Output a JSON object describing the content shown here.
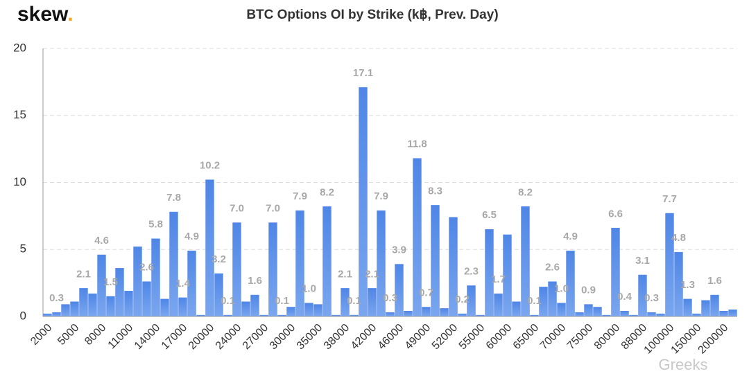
{
  "logo": "skew",
  "logo_dot": ".",
  "watermark": "Greeks",
  "chart_data": {
    "type": "bar",
    "title": "BTC Options OI by Strike (k฿, Prev. Day)",
    "categories": [
      "2000",
      null,
      null,
      "5000",
      null,
      null,
      "8000",
      null,
      null,
      "11000",
      null,
      null,
      "14000",
      null,
      null,
      "17000",
      null,
      null,
      "20000",
      null,
      null,
      "24000",
      null,
      null,
      "27000",
      null,
      null,
      "30000",
      null,
      null,
      "35000",
      null,
      null,
      "38000",
      null,
      null,
      "42000",
      null,
      null,
      "46000",
      null,
      null,
      "49000",
      null,
      null,
      "52000",
      null,
      null,
      "55000",
      null,
      null,
      "60000",
      null,
      null,
      "65000",
      null,
      null,
      "70000",
      null,
      null,
      "75000",
      null,
      null,
      "80000",
      null,
      null,
      "88000",
      null,
      null,
      "100000",
      null,
      null,
      "150000",
      null,
      null,
      "200000",
      null
    ],
    "values": [
      0.2,
      0.3,
      0.9,
      1.1,
      2.1,
      1.7,
      4.6,
      1.5,
      3.6,
      1.9,
      5.2,
      2.6,
      5.8,
      1.3,
      7.8,
      1.4,
      4.9,
      0.1,
      10.2,
      3.2,
      0.1,
      7.0,
      1.1,
      1.6,
      0.1,
      7.0,
      0.1,
      0.7,
      7.9,
      1.0,
      0.9,
      8.2,
      0.1,
      2.1,
      0.1,
      17.1,
      2.1,
      7.9,
      0.3,
      3.9,
      0.4,
      11.8,
      0.7,
      8.3,
      0.6,
      7.4,
      0.2,
      2.3,
      0.1,
      6.5,
      1.7,
      6.1,
      1.1,
      8.2,
      0.1,
      2.2,
      2.6,
      1.0,
      4.9,
      0.3,
      0.9,
      0.7,
      0.1,
      6.6,
      0.4,
      0.1,
      3.1,
      0.3,
      0.2,
      7.7,
      4.8,
      1.3,
      0.2,
      1.2,
      1.6,
      0.4,
      0.5
    ],
    "value_labels": [
      null,
      "0.3",
      null,
      null,
      "2.1",
      null,
      "4.6",
      "1.5",
      null,
      null,
      null,
      "2.6",
      "5.8",
      null,
      "7.8",
      "1.4",
      "4.9",
      null,
      "10.2",
      "3.2",
      "0.1",
      "7.0",
      null,
      "1.6",
      null,
      "7.0",
      "0.1",
      null,
      "7.9",
      "1.0",
      null,
      "8.2",
      null,
      "2.1",
      "0.1",
      "17.1",
      "2.1",
      "7.9",
      "0.3",
      "3.9",
      null,
      "11.8",
      "0.7",
      "8.3",
      null,
      null,
      "0.2",
      "2.3",
      null,
      "6.5",
      "1.7",
      null,
      null,
      "8.2",
      "0.1",
      null,
      "2.6",
      "1.0",
      "4.9",
      null,
      "0.9",
      null,
      null,
      "6.6",
      "0.4",
      null,
      "3.1",
      "0.3",
      null,
      "7.7",
      "4.8",
      "1.3",
      null,
      null,
      "1.6",
      null,
      null
    ],
    "color": "#5b8de8",
    "ylim": [
      0,
      20
    ],
    "yticks": [
      0,
      5,
      10,
      15,
      20
    ],
    "grid": true
  }
}
